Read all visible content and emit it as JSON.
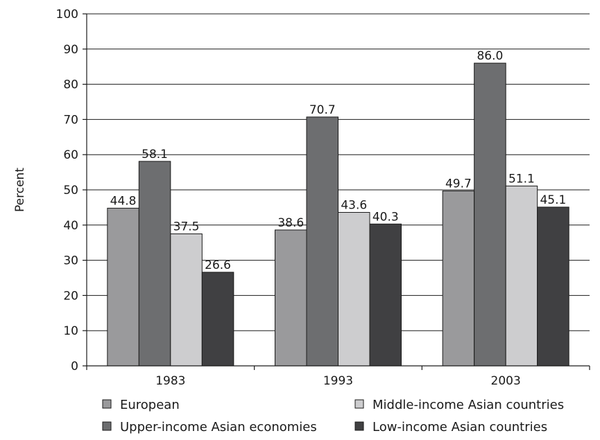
{
  "chart_data": {
    "type": "bar",
    "title": "",
    "xlabel": "",
    "ylabel": "Percent",
    "ylim": [
      0,
      100
    ],
    "yticks": [
      0,
      10,
      20,
      30,
      40,
      50,
      60,
      70,
      80,
      90,
      100
    ],
    "categories": [
      "1983",
      "1993",
      "2003"
    ],
    "grid": "horizontal",
    "legend_position": "bottom",
    "series": [
      {
        "name": "European",
        "color": "#9a9a9c",
        "values": [
          44.8,
          38.6,
          49.7
        ]
      },
      {
        "name": "Upper-income Asian economies",
        "color": "#6d6e70",
        "values": [
          58.1,
          70.7,
          86.0
        ]
      },
      {
        "name": "Middle-income Asian countries",
        "color": "#cdcdcf",
        "values": [
          37.5,
          43.6,
          51.1
        ]
      },
      {
        "name": "Low-income Asian countries",
        "color": "#404042",
        "values": [
          26.6,
          40.3,
          45.1
        ]
      }
    ],
    "data_labels": [
      [
        "44.8",
        "38.6",
        "49.7"
      ],
      [
        "58.1",
        "70.7",
        "86.0"
      ],
      [
        "37.5",
        "43.6",
        "51.1"
      ],
      [
        "26.6",
        "40.3",
        "45.1"
      ]
    ]
  }
}
